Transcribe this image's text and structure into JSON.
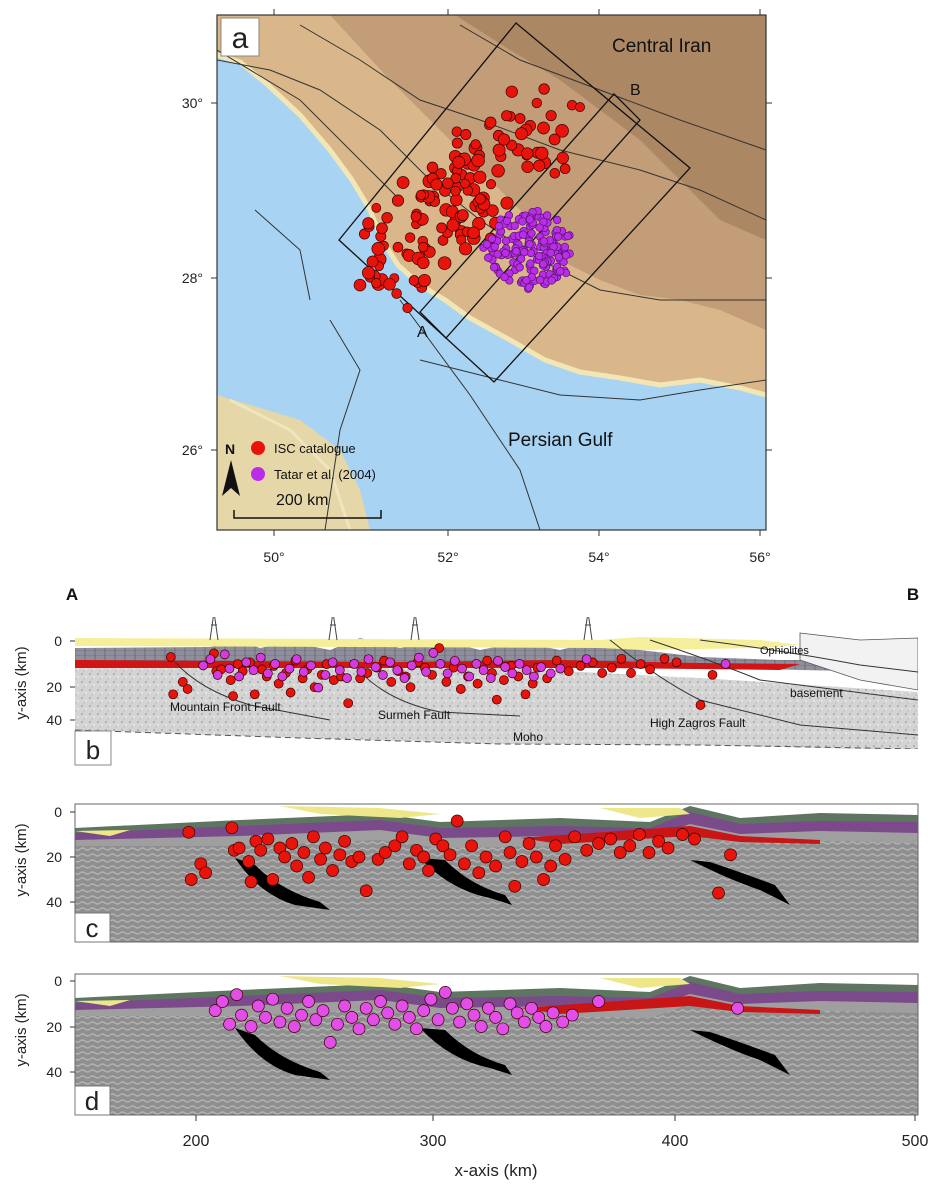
{
  "map": {
    "panel_label": "a",
    "region_central": "Central Iran",
    "region_gulf": "Persian Gulf",
    "point_a": "A",
    "point_b": "B",
    "lat_ticks": [
      "30°",
      "28°",
      "26°"
    ],
    "lon_ticks": [
      "50°",
      "52°",
      "54°",
      "56°"
    ],
    "north": "N",
    "scale_label": "200 km",
    "legend": [
      {
        "label": "ISC catalogue",
        "color": "#e8140c"
      },
      {
        "label": "Tatar et al. (2004)",
        "color": "#b92ce8"
      }
    ],
    "colors": {
      "sea": "#a9d3f2",
      "land": "#d9b78a",
      "relief": "#a98562",
      "coast": "#f2e7b4"
    }
  },
  "section": {
    "panel_label": "b",
    "end_a": "A",
    "end_b": "B",
    "ylabel": "y-axis (km)",
    "yticks": [
      "0",
      "20",
      "40"
    ],
    "labels": {
      "mff": "Mountain Front Fault",
      "surmeh": "Surmeh Fault",
      "hzf": "High Zagros Fault",
      "moho": "Moho",
      "basement": "basement",
      "ophiolites": "Ophiolites"
    }
  },
  "models": [
    {
      "panel_label": "c",
      "ylabel": "y-axis (km)",
      "yticks": [
        "0",
        "20",
        "40"
      ],
      "dot_color": "#e8140c"
    },
    {
      "panel_label": "d",
      "ylabel": "y-axis (km)",
      "yticks": [
        "0",
        "20",
        "40"
      ],
      "dot_color": "#e24ee8"
    }
  ],
  "xaxis": {
    "label": "x-axis (km)",
    "ticks": [
      "200",
      "300",
      "400",
      "500"
    ]
  },
  "chart_data": [
    {
      "type": "scatter",
      "panel": "c",
      "xlabel": "x-axis (km)",
      "ylabel": "y-axis (km)",
      "xlim": [
        150,
        500
      ],
      "ylim": [
        50,
        0
      ],
      "series": [
        {
          "name": "ISC catalogue",
          "points": [
            [
              197,
              9
            ],
            [
              198,
              30
            ],
            [
              202,
              23
            ],
            [
              204,
              27
            ],
            [
              215,
              7
            ],
            [
              216,
              17
            ],
            [
              218,
              16
            ],
            [
              222,
              22
            ],
            [
              223,
              31
            ],
            [
              225,
              13
            ],
            [
              227,
              17
            ],
            [
              230,
              12
            ],
            [
              232,
              30
            ],
            [
              235,
              16
            ],
            [
              237,
              20
            ],
            [
              240,
              14
            ],
            [
              242,
              24
            ],
            [
              245,
              18
            ],
            [
              247,
              29
            ],
            [
              249,
              11
            ],
            [
              252,
              21
            ],
            [
              254,
              16
            ],
            [
              257,
              26
            ],
            [
              260,
              19
            ],
            [
              262,
              13
            ],
            [
              265,
              22
            ],
            [
              268,
              20
            ],
            [
              271,
              35
            ],
            [
              276,
              21
            ],
            [
              279,
              18
            ],
            [
              283,
              15
            ],
            [
              286,
              11
            ],
            [
              289,
              23
            ],
            [
              292,
              17
            ],
            [
              295,
              20
            ],
            [
              297,
              26
            ],
            [
              300,
              12
            ],
            [
              303,
              15
            ],
            [
              306,
              19
            ],
            [
              309,
              4
            ],
            [
              312,
              23
            ],
            [
              315,
              15
            ],
            [
              318,
              27
            ],
            [
              321,
              20
            ],
            [
              325,
              24
            ],
            [
              329,
              11
            ],
            [
              331,
              18
            ],
            [
              333,
              33
            ],
            [
              336,
              22
            ],
            [
              339,
              14
            ],
            [
              342,
              20
            ],
            [
              345,
              30
            ],
            [
              348,
              24
            ],
            [
              350,
              15
            ],
            [
              354,
              21
            ],
            [
              358,
              11
            ],
            [
              363,
              17
            ],
            [
              368,
              14
            ],
            [
              373,
              12
            ],
            [
              377,
              18
            ],
            [
              381,
              15
            ],
            [
              385,
              10
            ],
            [
              389,
              18
            ],
            [
              393,
              13
            ],
            [
              397,
              16
            ],
            [
              403,
              10
            ],
            [
              408,
              12
            ],
            [
              418,
              36
            ],
            [
              423,
              19
            ]
          ]
        }
      ]
    },
    {
      "type": "scatter",
      "panel": "d",
      "xlabel": "x-axis (km)",
      "ylabel": "y-axis (km)",
      "xlim": [
        150,
        500
      ],
      "ylim": [
        50,
        0
      ],
      "series": [
        {
          "name": "Tatar et al. (2004)",
          "points": [
            [
              208,
              13
            ],
            [
              211,
              9
            ],
            [
              214,
              19
            ],
            [
              217,
              6
            ],
            [
              219,
              15
            ],
            [
              223,
              20
            ],
            [
              226,
              11
            ],
            [
              229,
              16
            ],
            [
              232,
              8
            ],
            [
              235,
              18
            ],
            [
              238,
              12
            ],
            [
              241,
              20
            ],
            [
              244,
              15
            ],
            [
              247,
              9
            ],
            [
              250,
              17
            ],
            [
              253,
              13
            ],
            [
              256,
              27
            ],
            [
              259,
              19
            ],
            [
              262,
              11
            ],
            [
              265,
              16
            ],
            [
              268,
              21
            ],
            [
              271,
              12
            ],
            [
              274,
              17
            ],
            [
              277,
              9
            ],
            [
              280,
              14
            ],
            [
              283,
              19
            ],
            [
              286,
              11
            ],
            [
              289,
              16
            ],
            [
              292,
              21
            ],
            [
              295,
              13
            ],
            [
              298,
              8
            ],
            [
              301,
              17
            ],
            [
              304,
              5
            ],
            [
              307,
              12
            ],
            [
              310,
              18
            ],
            [
              313,
              10
            ],
            [
              316,
              15
            ],
            [
              319,
              20
            ],
            [
              322,
              12
            ],
            [
              325,
              16
            ],
            [
              328,
              21
            ],
            [
              331,
              10
            ],
            [
              334,
              14
            ],
            [
              337,
              18
            ],
            [
              340,
              12
            ],
            [
              343,
              16
            ],
            [
              346,
              20
            ],
            [
              349,
              14
            ],
            [
              353,
              18
            ],
            [
              357,
              15
            ],
            [
              368,
              9
            ],
            [
              426,
              12
            ]
          ]
        }
      ]
    }
  ]
}
